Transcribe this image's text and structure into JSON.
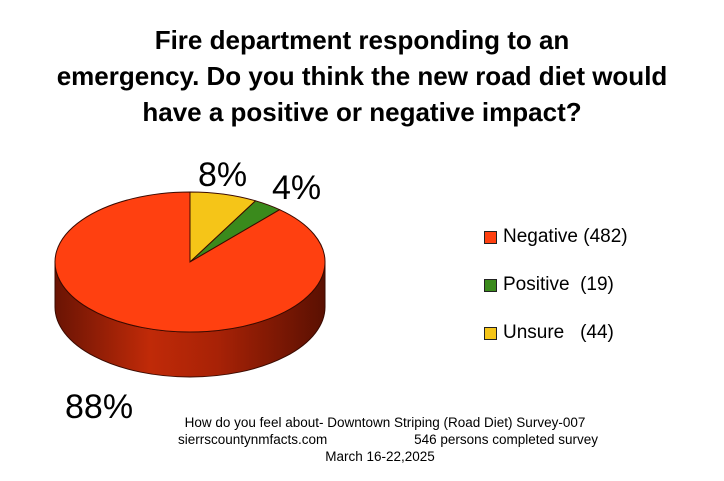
{
  "chart_data": {
    "type": "pie",
    "title_lines": [
      "Fire department responding to an",
      "emergency. Do you think the new road diet would",
      "have a positive or negative impact?"
    ],
    "slices": [
      {
        "label": "Negative (482)",
        "value": 482,
        "pct_label": "88%",
        "color": "#ff4010"
      },
      {
        "label": "Positive  (19)",
        "value": 19,
        "pct_label": "4%",
        "color": "#3a8a1c"
      },
      {
        "label": "Unsure   (44)",
        "value": 44,
        "pct_label": "8%",
        "color": "#f5c518"
      }
    ],
    "legend_position": "right"
  },
  "footer": {
    "line1": "How do you feel about- Downtown Striping (Road Diet) Survey-007",
    "website": "sierrscountynmfacts.com",
    "persons": "546 persons completed survey",
    "dates": "March 16-22,2025"
  }
}
